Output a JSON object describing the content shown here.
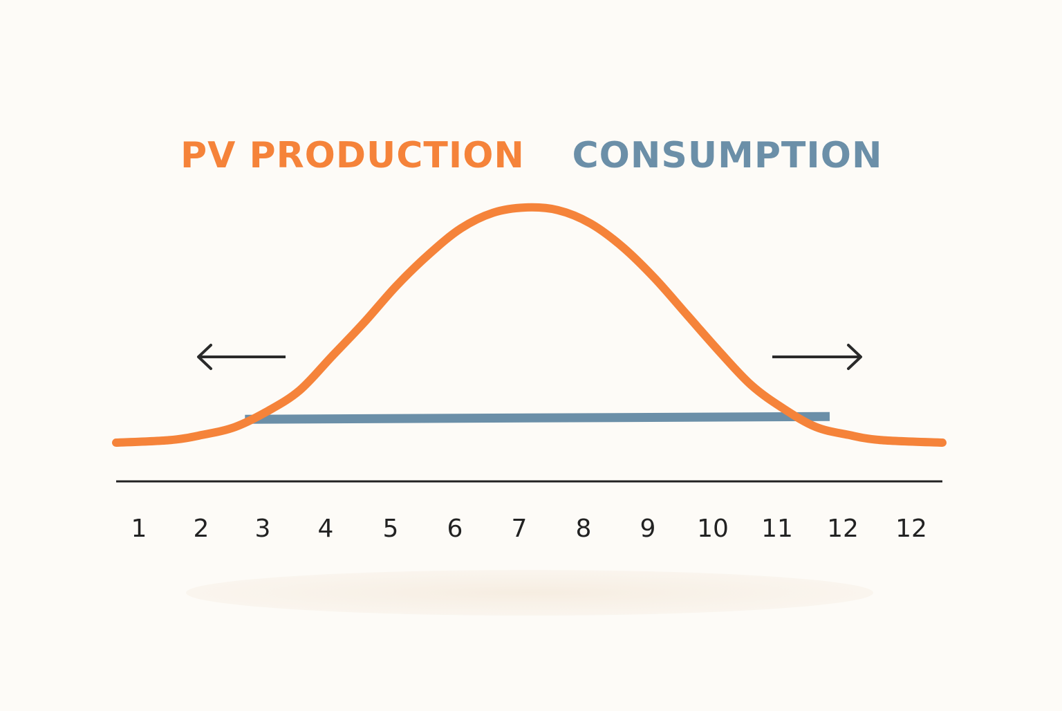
{
  "chart_data": {
    "type": "line",
    "title": "",
    "xlabel": "",
    "ylabel": "",
    "categories": [
      "1",
      "2",
      "3",
      "4",
      "5",
      "6",
      "7",
      "8",
      "9",
      "10",
      "11",
      "12",
      "12"
    ],
    "x": [
      1,
      2,
      3,
      4,
      5,
      6,
      7,
      8,
      9,
      10,
      11,
      12,
      13
    ],
    "xlim": [
      1,
      13
    ],
    "ylim": [
      0,
      10
    ],
    "grid": false,
    "legend_placement": "top-center",
    "series": [
      {
        "name": "PV PRODUCTION",
        "color": "#f5833a",
        "x": [
          1,
          1.5,
          2,
          2.5,
          3,
          3.5,
          4,
          4.5,
          5,
          5.5,
          6,
          6.5,
          7,
          7.5,
          8,
          8.5,
          9,
          9.5,
          10,
          10.5,
          11,
          11.5,
          12,
          12.5,
          13
        ],
        "values": [
          1.0,
          1.1,
          1.3,
          1.6,
          2.2,
          3.0,
          4.3,
          5.6,
          7.0,
          8.2,
          9.2,
          9.8,
          10.0,
          9.9,
          9.4,
          8.5,
          7.3,
          5.9,
          4.5,
          3.2,
          2.3,
          1.6,
          1.3,
          1.1,
          1.0
        ]
      },
      {
        "name": "CONSUMPTION",
        "color": "#6b8fa8",
        "x": [
          2.6,
          11.5
        ],
        "values": [
          2.0,
          2.0
        ]
      }
    ],
    "annotations": [
      {
        "type": "arrow",
        "direction": "left",
        "near_x": 2.5,
        "y": 5.0
      },
      {
        "type": "arrow",
        "direction": "right",
        "near_x": 11.6,
        "y": 5.0
      }
    ]
  },
  "colors": {
    "background": "#fdfbf7",
    "axis": "#222222",
    "arrow": "#2a2a2a",
    "shadow": "#f7efe4"
  }
}
